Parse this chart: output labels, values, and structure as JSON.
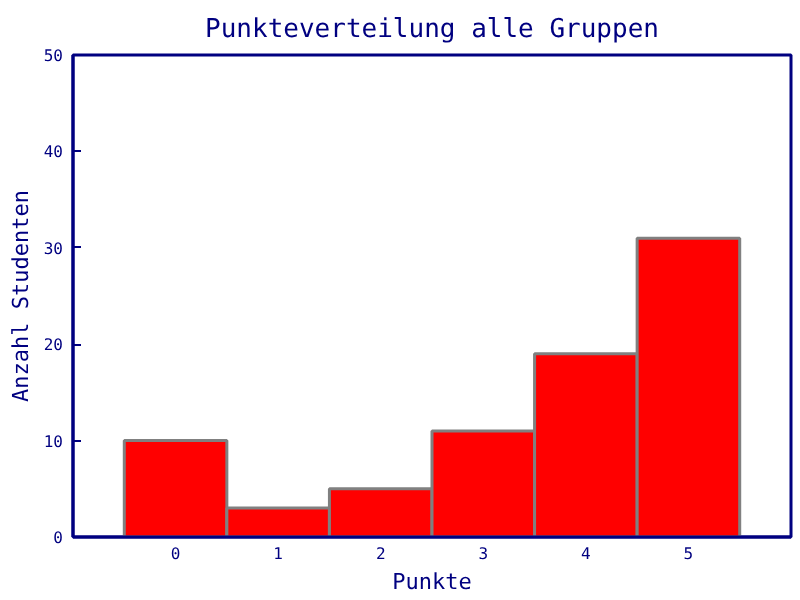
{
  "chart_data": {
    "type": "bar",
    "title": "Punkteverteilung alle Gruppen",
    "xlabel": "Punkte",
    "ylabel": "Anzahl Studenten",
    "categories": [
      "0",
      "1",
      "2",
      "3",
      "4",
      "5"
    ],
    "values": [
      10,
      3,
      5,
      11,
      19,
      31
    ],
    "color": "#ff0000",
    "ylim": [
      0,
      50
    ],
    "yticks": [
      0,
      10,
      20,
      30,
      40,
      50
    ],
    "grid": false
  }
}
